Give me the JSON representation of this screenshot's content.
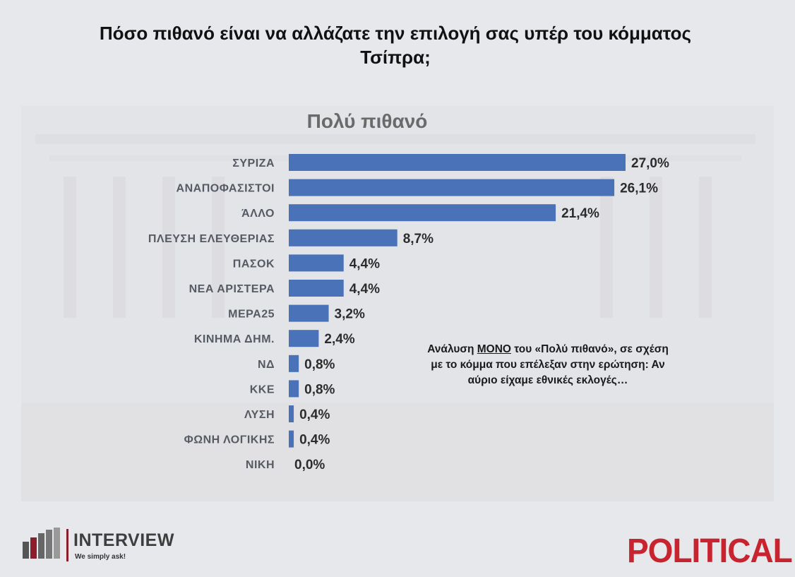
{
  "header": {
    "title_line1": "Πόσο πιθανό είναι να αλλάζατε την επιλογή σας υπέρ του κόμματος",
    "title_line2": "Τσίπρα;"
  },
  "chart_data": {
    "type": "bar",
    "orientation": "horizontal",
    "title": "Πολύ πιθανό",
    "categories": [
      "ΣΥΡΙΖΑ",
      "ΑΝΑΠΟΦΑΣΙΣΤΟΙ",
      "ΆΛΛΟ",
      "ΠΛΕΥΣΗ ΕΛΕΥΘΕΡΙΑΣ",
      "ΠΑΣΟΚ",
      "ΝΕΑ ΑΡΙΣΤΕΡΑ",
      "ΜΕΡΑ25",
      "ΚΙΝΗΜΑ ΔΗΜ.",
      "ΝΔ",
      "ΚΚΕ",
      "ΛΥΣΗ",
      "ΦΩΝΗ ΛΟΓΙΚΗΣ",
      "ΝΙΚΗ"
    ],
    "values": [
      27.0,
      26.1,
      21.4,
      8.7,
      4.4,
      4.4,
      3.2,
      2.4,
      0.8,
      0.8,
      0.4,
      0.4,
      0.0
    ],
    "value_labels": [
      "27,0%",
      "26,1%",
      "21,4%",
      "8,7%",
      "4,4%",
      "4,4%",
      "3,2%",
      "2,4%",
      "0,8%",
      "0,8%",
      "0,4%",
      "0,4%",
      "0,0%"
    ],
    "unit": "%",
    "bar_color": "#4a72b8",
    "xlim": [
      0,
      27.0
    ],
    "grid": false,
    "legend": "none"
  },
  "note": {
    "part1": "Ανάλυση ",
    "emphasis": "ΜΟΝΟ",
    "part2": " του «Πολύ πιθανό», σε σχέση με το κόμμα που επέλεξαν στην ερώτηση: Αν αύριο είχαμε εθνικές εκλογές…"
  },
  "logos": {
    "interview_name": "INTERVIEW",
    "interview_tagline": "We simply ask!",
    "political": "POLITICAL"
  },
  "colors": {
    "bar": "#4a72b8",
    "political_red": "#c8242f",
    "interview_accent": "#8c1d2b"
  }
}
